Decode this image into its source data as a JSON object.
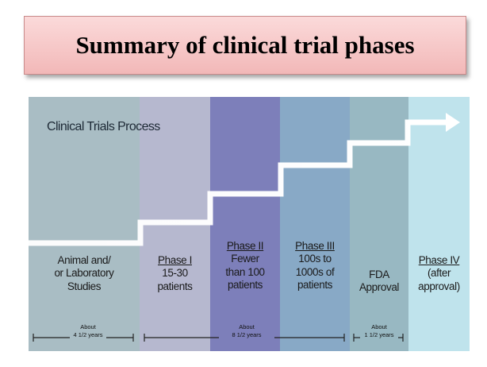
{
  "title": "Summary of clinical trial phases",
  "diagram": {
    "heading": "Clinical Trials Process",
    "columns": [
      {
        "id": "preclinical",
        "phase": "",
        "lines": [
          "Animal and/",
          "or Laboratory",
          "Studies"
        ],
        "color": "#a9bdc4"
      },
      {
        "id": "phase-1",
        "phase": "Phase I",
        "lines": [
          "15-30",
          "patients"
        ],
        "color": "#b6b8cf"
      },
      {
        "id": "phase-2",
        "phase": "Phase II",
        "lines": [
          "Fewer",
          "than 100",
          "patients"
        ],
        "color": "#7d7fba"
      },
      {
        "id": "phase-3",
        "phase": "Phase III",
        "lines": [
          "100s to",
          "1000s of",
          "patients"
        ],
        "color": "#88a9c6"
      },
      {
        "id": "fda-approval",
        "phase": "",
        "lines": [
          "FDA",
          "Approval"
        ],
        "color": "#98b8c2"
      },
      {
        "id": "phase-4",
        "phase": "Phase IV",
        "lines": [
          "(after",
          "approval)"
        ],
        "color": "#bfe3ec"
      }
    ],
    "durations": [
      {
        "id": "preclinical",
        "line1": "About",
        "line2": "4 1/2 years"
      },
      {
        "id": "clinical",
        "line1": "About",
        "line2": "8 1/2 years"
      },
      {
        "id": "approval",
        "line1": "About",
        "line2": "1 1/2 years"
      }
    ]
  }
}
